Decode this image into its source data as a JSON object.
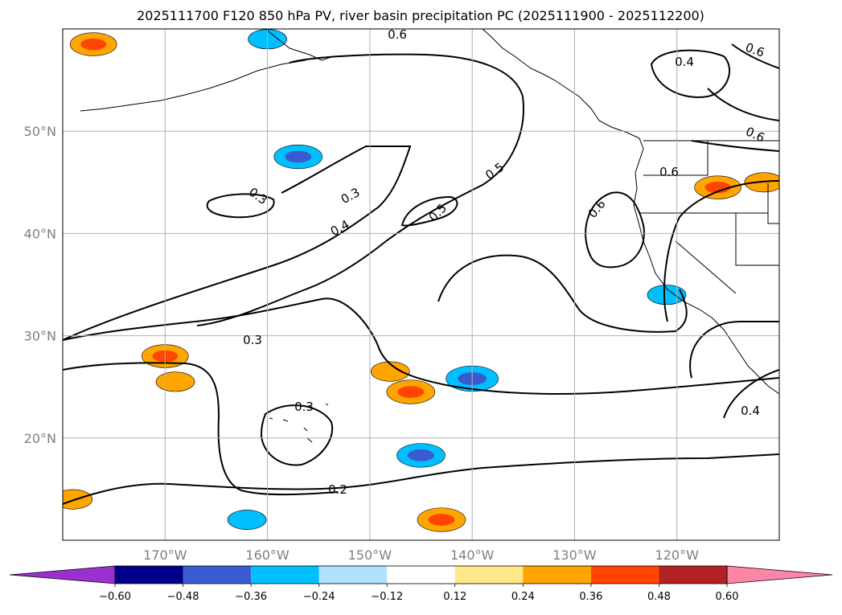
{
  "chart_data": {
    "type": "heatmap",
    "title": "2025111700 F120 850 hPa PV, river basin precipitation PC (2025111900 - 2025112200)",
    "projection": "PlateCarree",
    "lon_range": [
      -180,
      -110
    ],
    "lat_range": [
      10,
      60
    ],
    "lon_ticks": [
      {
        "lon": -170,
        "label": "170°W"
      },
      {
        "lon": -160,
        "label": "160°W"
      },
      {
        "lon": -150,
        "label": "150°W"
      },
      {
        "lon": -140,
        "label": "140°W"
      },
      {
        "lon": -130,
        "label": "130°W"
      },
      {
        "lon": -120,
        "label": "120°W"
      }
    ],
    "lat_ticks": [
      {
        "lat": 20,
        "label": "20°N"
      },
      {
        "lat": 30,
        "label": "30°N"
      },
      {
        "lat": 40,
        "label": "40°N"
      },
      {
        "lat": 50,
        "label": "50°N"
      }
    ],
    "gridlines": true,
    "colorbar": {
      "extend": "both",
      "boundaries": [
        -0.6,
        -0.48,
        -0.36,
        -0.24,
        -0.12,
        0.12,
        0.24,
        0.36,
        0.48,
        0.6
      ],
      "tick_labels": [
        "−0.60",
        "−0.48",
        "−0.36",
        "−0.24",
        "−0.12",
        "0.12",
        "0.24",
        "0.36",
        "0.48",
        "0.60"
      ],
      "colors": [
        "#9b30d0",
        "#00008b",
        "#3a5bd0",
        "#00bfff",
        "#b0e2ff",
        "#ffffff",
        "#ffe88a",
        "#ffa500",
        "#ff4500",
        "#b22222",
        "#ff85a8"
      ]
    },
    "pv_contour_labels": [
      "0.2",
      "0.3",
      "0.3",
      "0.3",
      "0.3",
      "0.4",
      "0.4",
      "0.4",
      "0.5",
      "0.5",
      "0.6",
      "0.6",
      "0.6",
      "0.6",
      "0.6"
    ],
    "precip_anomalies": [
      {
        "lon": -177,
        "lat": 58.5,
        "value": 0.38
      },
      {
        "lon": -170,
        "lat": 28.0,
        "value": 0.38
      },
      {
        "lon": -169,
        "lat": 25.5,
        "value": 0.28
      },
      {
        "lon": -146,
        "lat": 24.5,
        "value": 0.4
      },
      {
        "lon": -148,
        "lat": 26.5,
        "value": 0.28
      },
      {
        "lon": -140,
        "lat": 25.8,
        "value": -0.45
      },
      {
        "lon": -145,
        "lat": 18.3,
        "value": -0.4
      },
      {
        "lon": -157,
        "lat": 47.5,
        "value": -0.4
      },
      {
        "lon": -160,
        "lat": 59.0,
        "value": -0.28
      },
      {
        "lon": -116,
        "lat": 44.5,
        "value": 0.38
      },
      {
        "lon": -111.5,
        "lat": 45.0,
        "value": 0.28
      },
      {
        "lon": -143,
        "lat": 12.0,
        "value": 0.4
      },
      {
        "lon": -179,
        "lat": 14.0,
        "value": 0.28
      },
      {
        "lon": -162,
        "lat": 12.0,
        "value": -0.28
      },
      {
        "lon": -121,
        "lat": 34.0,
        "value": -0.28
      }
    ]
  }
}
